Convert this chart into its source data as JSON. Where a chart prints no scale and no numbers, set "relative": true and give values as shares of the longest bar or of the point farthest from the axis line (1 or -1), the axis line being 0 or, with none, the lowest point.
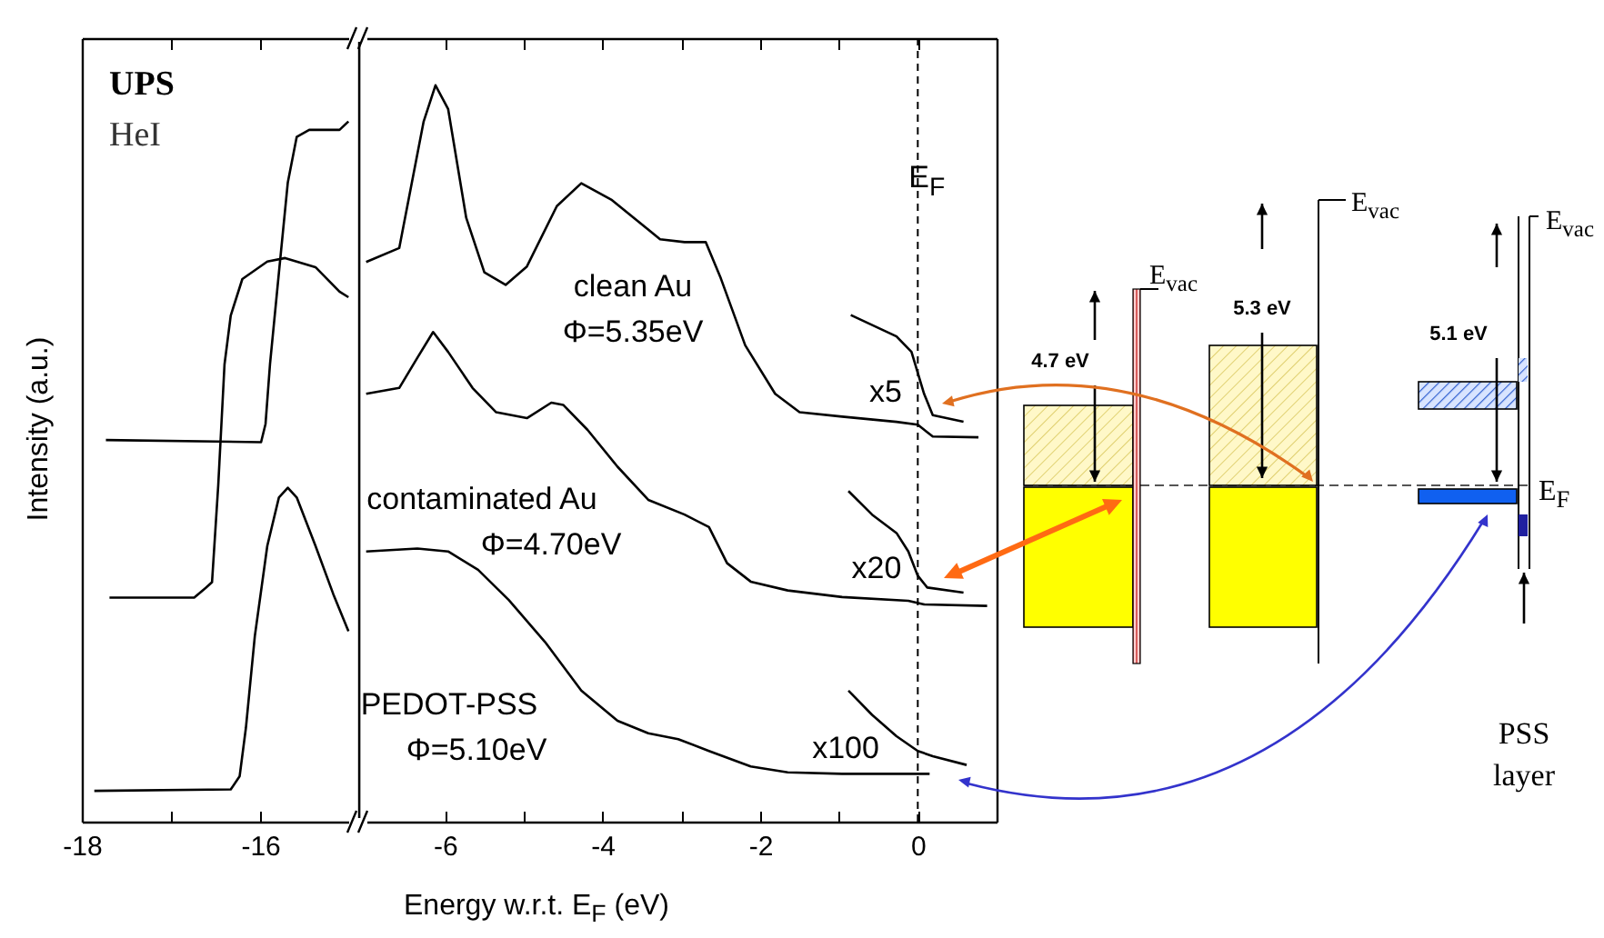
{
  "chart_data": [
    {
      "type": "line",
      "relative": true,
      "ylabel": "Intensity (a.u.)",
      "xlim": [
        -18,
        -14.9
      ],
      "xticks": [
        -18,
        {
          "value": -17,
          "label": null
        },
        -16
      ],
      "tick_labels": "x",
      "annotations": [
        "UPS",
        "HeI"
      ],
      "series": [
        {
          "color": "#000000",
          "x": [
            -17.73,
            -15.99,
            -15.94,
            -15.89,
            -15.79,
            -15.69,
            -15.59,
            -15.45,
            -15.11,
            -15.01
          ],
          "values": [
            0.545,
            0.542,
            0.568,
            0.653,
            0.784,
            0.913,
            0.978,
            0.988,
            0.988,
            1.0
          ]
        },
        {
          "color": "#000000",
          "x": [
            -17.69,
            -16.74,
            -16.61,
            -16.54,
            -16.47,
            -16.4,
            -16.33,
            -16.2,
            -15.92,
            -15.72,
            -15.38,
            -15.11,
            -15.01
          ],
          "values": [
            0.32,
            0.32,
            0.334,
            0.342,
            0.481,
            0.653,
            0.723,
            0.775,
            0.8,
            0.805,
            0.792,
            0.757,
            0.749
          ]
        },
        {
          "color": "#000000",
          "x": [
            -17.86,
            -16.33,
            -16.23,
            -16.16,
            -16.06,
            -15.92,
            -15.79,
            -15.69,
            -15.59,
            -15.38,
            -15.18,
            -15.01
          ],
          "values": [
            0.044,
            0.046,
            0.065,
            0.134,
            0.265,
            0.394,
            0.463,
            0.477,
            0.463,
            0.394,
            0.325,
            0.272
          ]
        }
      ]
    },
    {
      "type": "line",
      "relative": true,
      "xlabel": "Energy w.r.t. E$_{F}$ (eV)",
      "xlim": [
        -7.1,
        1.0
      ],
      "xticks": [
        -6,
        {
          "value": -5,
          "label": null
        },
        -4,
        {
          "value": -3,
          "label": null
        },
        -2,
        {
          "value": -1,
          "label": null
        },
        0
      ],
      "tick_labels": "x",
      "annotations": [
        "Φ=5.35eV",
        "x5",
        "Φ=4.70eV",
        "x20",
        "Φ=5.10eV",
        "x100"
      ],
      "ref_lines": [
        {
          "axis": "x",
          "value": 0,
          "label": "E$_{F}$",
          "line_style": "dashed",
          "color": "#000000"
        }
      ],
      "series": [
        {
          "name": "clean Au",
          "color": "#000000",
          "x": [
            -7.0,
            -6.58,
            -6.27,
            -6.12,
            -5.96,
            -5.73,
            -5.5,
            -5.23,
            -4.96,
            -4.58,
            -4.27,
            -3.88,
            -3.27,
            -2.96,
            -2.69,
            -2.5,
            -2.19,
            -1.81,
            -1.5,
            -0.96,
            -0.27,
            0,
            0.19,
            0.77
          ],
          "values": [
            0.76,
            0.779,
            0.951,
            1.0,
            0.968,
            0.82,
            0.746,
            0.729,
            0.754,
            0.836,
            0.867,
            0.844,
            0.791,
            0.787,
            0.787,
            0.738,
            0.647,
            0.581,
            0.556,
            0.55,
            0.543,
            0.539,
            0.523,
            0.522
          ]
        },
        {
          "name": "contaminated Au",
          "color": "#000000",
          "x": [
            -7.0,
            -6.58,
            -6.35,
            -6.15,
            -5.96,
            -5.65,
            -5.35,
            -4.96,
            -4.65,
            -4.5,
            -4.19,
            -3.81,
            -3.42,
            -2.96,
            -2.65,
            -2.42,
            -2.12,
            -1.65,
            -0.96,
            -0.12,
            0.08,
            0.88
          ],
          "values": [
            0.581,
            0.589,
            0.63,
            0.665,
            0.638,
            0.589,
            0.556,
            0.548,
            0.569,
            0.566,
            0.532,
            0.482,
            0.437,
            0.417,
            0.4,
            0.351,
            0.326,
            0.314,
            0.305,
            0.3,
            0.295,
            0.293
          ]
        },
        {
          "name": "PEDOT-PSS",
          "color": "#000000",
          "x": [
            -7.0,
            -6.35,
            -5.96,
            -5.58,
            -5.19,
            -4.73,
            -4.27,
            -3.81,
            -3.42,
            -3.04,
            -2.65,
            -2.12,
            -1.65,
            -0.96,
            0.15
          ],
          "values": [
            0.367,
            0.371,
            0.367,
            0.342,
            0.301,
            0.244,
            0.178,
            0.137,
            0.12,
            0.112,
            0.096,
            0.075,
            0.067,
            0.065,
            0.065
          ]
        },
        {
          "color": "#000000",
          "x": [
            -0.85,
            -0.27,
            -0.08,
            0.08,
            0.19,
            0.58
          ],
          "values": [
            0.688,
            0.659,
            0.638,
            0.581,
            0.552,
            0.543
          ]
        },
        {
          "color": "#000000",
          "x": [
            -0.88,
            -0.58,
            -0.27,
            -0.12,
            0,
            0.12,
            0.58
          ],
          "values": [
            0.449,
            0.417,
            0.392,
            0.367,
            0.334,
            0.318,
            0.311
          ]
        },
        {
          "color": "#000000",
          "x": [
            -0.88,
            -0.58,
            -0.27,
            0,
            0.19,
            0.62
          ],
          "values": [
            0.178,
            0.145,
            0.116,
            0.096,
            0.089,
            0.077
          ]
        }
      ]
    },
    {
      "type": "other",
      "annotations": [
        "4.7 eV",
        "E$_{vac}$",
        "5.3 eV",
        "E$_{vac}$",
        "5.1 eV",
        "E$_{vac}$",
        "E$_{F}$",
        "PSS layer"
      ]
    }
  ]
}
